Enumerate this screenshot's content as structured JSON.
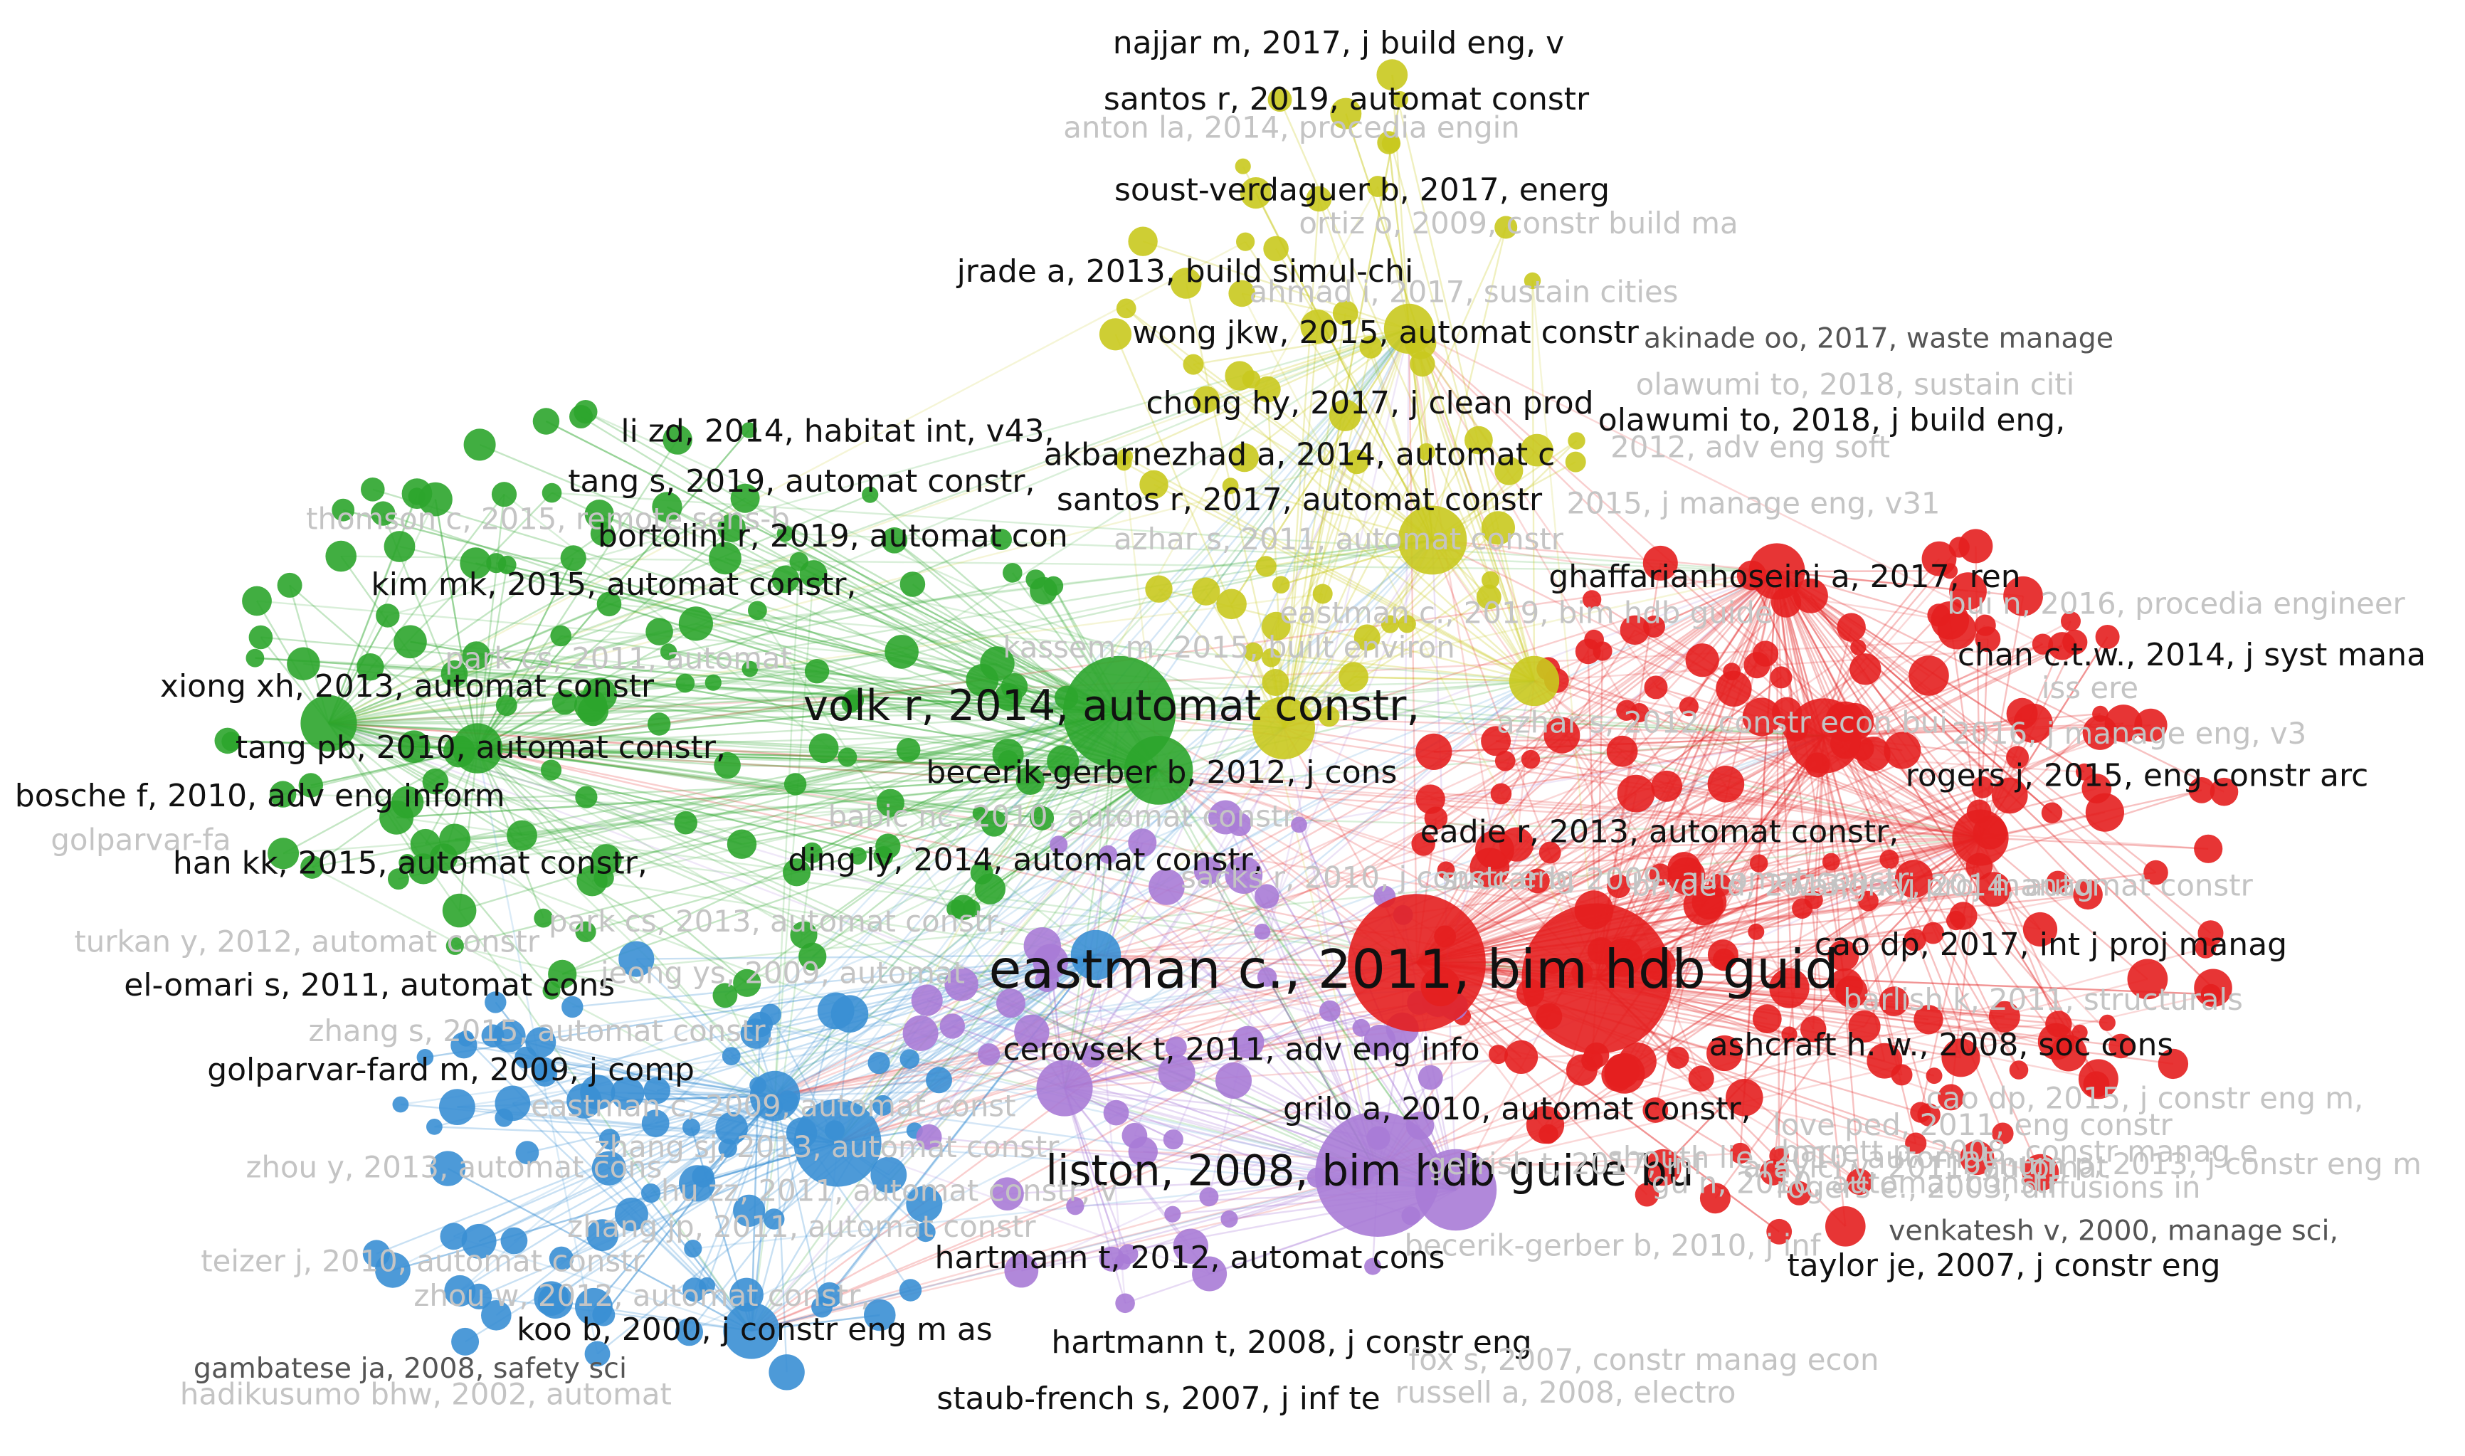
{
  "colors": {
    "red": "#e41f1f",
    "green": "#2ca52c",
    "blue": "#3a8fd4",
    "purple": "#a97bd6",
    "yellow": "#c9c91e",
    "label_dark": "#111111",
    "label_faint": "#c4c4c4"
  },
  "labels": [
    {
      "id": "najjar",
      "text": "najjar m, 2017, j build eng, v",
      "cluster": "yellow",
      "weight": "normal"
    },
    {
      "id": "santos2019",
      "text": "santos r, 2019, automat constr",
      "cluster": "yellow",
      "weight": "normal"
    },
    {
      "id": "anton",
      "text": "anton la, 2014, procedia engin",
      "cluster": "yellow",
      "weight": "faint"
    },
    {
      "id": "soust",
      "text": "soust-verdaguer b, 2017, energ",
      "cluster": "yellow",
      "weight": "normal"
    },
    {
      "id": "ortiz",
      "text": "ortiz o, 2009, constr build ma",
      "cluster": "yellow",
      "weight": "faint"
    },
    {
      "id": "jrade",
      "text": "jrade a, 2013, build simul-chi",
      "cluster": "yellow",
      "weight": "normal"
    },
    {
      "id": "ahmad",
      "text": "ahmad i, 2017, sustain cities",
      "cluster": "yellow",
      "weight": "faint"
    },
    {
      "id": "wong",
      "text": "wong jkw, 2015, automat constr",
      "cluster": "yellow",
      "weight": "normal"
    },
    {
      "id": "akinade",
      "text": "akinade oo, 2017, waste manage",
      "cluster": "yellow",
      "weight": "medium"
    },
    {
      "id": "olawumi2018s",
      "text": "olawumi to, 2018, sustain citi",
      "cluster": "yellow",
      "weight": "faint"
    },
    {
      "id": "chong",
      "text": "chong hy, 2017, j clean prod",
      "cluster": "yellow",
      "weight": "normal"
    },
    {
      "id": "olawumi2018b",
      "text": "olawumi to, 2018, j build eng,",
      "cluster": "yellow",
      "weight": "normal"
    },
    {
      "id": "lizd",
      "text": "li zd, 2014, habitat int, v43,",
      "cluster": "green",
      "weight": "normal"
    },
    {
      "id": "akbarnezhad",
      "text": "akbarnezhad a, 2014, automat c",
      "cluster": "yellow",
      "weight": "normal"
    },
    {
      "id": "advengsoft",
      "text": "2012, adv eng soft",
      "cluster": "red",
      "weight": "faint"
    },
    {
      "id": "tangs",
      "text": "tang s, 2019, automat constr,",
      "cluster": "green",
      "weight": "normal"
    },
    {
      "id": "thomson",
      "text": "thomson c, 2015, remote sens-b",
      "cluster": "green",
      "weight": "faint"
    },
    {
      "id": "santos2017",
      "text": "santos r, 2017, automat constr",
      "cluster": "yellow",
      "weight": "normal"
    },
    {
      "id": "jmanage",
      "text": "2015, j manage eng, v31",
      "cluster": "red",
      "weight": "faint"
    },
    {
      "id": "bortolini",
      "text": "bortolini r, 2019, automat con",
      "cluster": "green",
      "weight": "normal"
    },
    {
      "id": "azhar2011",
      "text": "azhar s, 2011, automat constr",
      "cluster": "yellow",
      "weight": "faint"
    },
    {
      "id": "kimmk",
      "text": "kim mk, 2015, automat constr,",
      "cluster": "green",
      "weight": "normal"
    },
    {
      "id": "ghaffar",
      "text": "ghaffarianhoseini a, 2017, ren",
      "cluster": "red",
      "weight": "normal"
    },
    {
      "id": "bui",
      "text": "bui n, 2016, procedia engineer",
      "cluster": "red",
      "weight": "faint"
    },
    {
      "id": "eastbim",
      "text": "eastman c., 2019, bim hdb guide",
      "cluster": "red",
      "weight": "faint"
    },
    {
      "id": "park2011",
      "text": "park cs, 2011, automat",
      "cluster": "green",
      "weight": "faint"
    },
    {
      "id": "kassem",
      "text": "kassem m, 2015, built environ",
      "cluster": "yellow",
      "weight": "faint"
    },
    {
      "id": "chanctw",
      "text": "chan c.t.w., 2014, j syst mana",
      "cluster": "red",
      "weight": "normal"
    },
    {
      "id": "xiong",
      "text": "xiong xh, 2013, automat constr",
      "cluster": "green",
      "weight": "normal"
    },
    {
      "id": "volk",
      "text": "volk r, 2014, automat constr,",
      "cluster": "green",
      "weight": "big"
    },
    {
      "id": "azhar2012",
      "text": "azhar s, 2012, constr econ bui",
      "cluster": "red",
      "weight": "faint"
    },
    {
      "id": "issere",
      "text": "iss ere",
      "cluster": "red",
      "weight": "faint"
    },
    {
      "id": "jmanage2016",
      "text": "2016, j manage eng, v3",
      "cluster": "red",
      "weight": "faint"
    },
    {
      "id": "tangpb",
      "text": "tang pb, 2010, automat constr,",
      "cluster": "green",
      "weight": "normal"
    },
    {
      "id": "becerik2012",
      "text": "becerik-gerber b, 2012, j cons",
      "cluster": "green",
      "weight": "normal"
    },
    {
      "id": "rogers",
      "text": "rogers j, 2015, eng constr arc",
      "cluster": "red",
      "weight": "normal"
    },
    {
      "id": "bosche",
      "text": "bosche f, 2010, adv eng inform",
      "cluster": "green",
      "weight": "normal"
    },
    {
      "id": "babic",
      "text": "babic nc, 2010, automat constr",
      "cluster": "purple",
      "weight": "faint"
    },
    {
      "id": "eadie",
      "text": "eadie r, 2013, automat constr,",
      "cluster": "red",
      "weight": "normal"
    },
    {
      "id": "golparvar_l",
      "text": "golparvar-fa",
      "cluster": "green",
      "weight": "faint"
    },
    {
      "id": "dingly",
      "text": "ding ly, 2014, automat constr,",
      "cluster": "green",
      "weight": "normal"
    },
    {
      "id": "hankk",
      "text": "han kk, 2015, automat constr,",
      "cluster": "green",
      "weight": "normal"
    },
    {
      "id": "sacks",
      "text": "sacks r, 2010, j constr eng",
      "cluster": "purple",
      "weight": "faint"
    },
    {
      "id": "succar",
      "text": "succar b, 2009, automat constr",
      "cluster": "red",
      "weight": "faint"
    },
    {
      "id": "bryde",
      "text": "bryde d, 2013, int j proj manag",
      "cluster": "red",
      "weight": "faint"
    },
    {
      "id": "wang2014",
      "text": "wang xy, 2014, automat constr",
      "cluster": "red",
      "weight": "faint"
    },
    {
      "id": "parkcs",
      "text": "park cs, 2013, automat constr,",
      "cluster": "blue",
      "weight": "faint"
    },
    {
      "id": "turkan",
      "text": "turkan y, 2012, automat constr",
      "cluster": "green",
      "weight": "faint"
    },
    {
      "id": "cao",
      "text": "cao dp, 2017, int j proj manag",
      "cluster": "red",
      "weight": "normal"
    },
    {
      "id": "elomari",
      "text": "el-omari s, 2011, automat cons",
      "cluster": "green",
      "weight": "normal"
    },
    {
      "id": "jeong",
      "text": "jeong ys, 2009, automat",
      "cluster": "blue",
      "weight": "faint"
    },
    {
      "id": "eastman2011",
      "text": "eastman c., 2011, bim hdb guid",
      "cluster": "red",
      "weight": "huge"
    },
    {
      "id": "barlish",
      "text": "barlish k, 2011, structurals",
      "cluster": "red",
      "weight": "faint"
    },
    {
      "id": "zhangs2015",
      "text": "zhang s, 2015, automat constr,",
      "cluster": "blue",
      "weight": "faint"
    },
    {
      "id": "cerovsek",
      "text": "cerovsek t, 2011, adv eng info",
      "cluster": "purple",
      "weight": "normal"
    },
    {
      "id": "ashcraft",
      "text": "ashcraft h. w., 2008, soc cons",
      "cluster": "red",
      "weight": "normal"
    },
    {
      "id": "golparvar2009",
      "text": "golparvar-fard m, 2009, j comp",
      "cluster": "green",
      "weight": "normal"
    },
    {
      "id": "caodp2015",
      "text": "cao dp, 2015, j constr eng m,",
      "cluster": "red",
      "weight": "faint"
    },
    {
      "id": "eastman2009",
      "text": "eastman c, 2009, automat const",
      "cluster": "blue",
      "weight": "faint"
    },
    {
      "id": "grilo",
      "text": "grilo a, 2010, automat constr,",
      "cluster": "purple",
      "weight": "normal"
    },
    {
      "id": "love2011",
      "text": "love ped, 2011, eng constr",
      "cluster": "red",
      "weight": "faint"
    },
    {
      "id": "zhangsj",
      "text": "zhang sj, 2013, automat constr",
      "cluster": "blue",
      "weight": "faint"
    },
    {
      "id": "zhouy",
      "text": "zhou y, 2013, automat cons",
      "cluster": "blue",
      "weight": "faint"
    },
    {
      "id": "liston",
      "text": "liston, 2008, bim hdb guide bu",
      "cluster": "purple",
      "weight": "big"
    },
    {
      "id": "gerrish",
      "text": "gerrish t, 2017, inf",
      "cluster": "purple",
      "weight": "faint"
    },
    {
      "id": "bynum",
      "text": "bynum p, 2013, j constr eng m",
      "cluster": "red",
      "weight": "faint"
    },
    {
      "id": "arayici",
      "text": "arayici y, 2011, automat",
      "cluster": "red",
      "weight": "faint"
    },
    {
      "id": "barrett",
      "text": "barrett p, 2008, constr manag e",
      "cluster": "red",
      "weight": "faint"
    },
    {
      "id": "shouth",
      "text": "shouth lie, 2010, automat",
      "cluster": "red",
      "weight": "faint"
    },
    {
      "id": "gu2010",
      "text": "gu n, 2010, automat constr",
      "cluster": "red",
      "weight": "faint"
    },
    {
      "id": "lanar",
      "text": "rogers e., 2003, diffusions in",
      "cluster": "red",
      "weight": "faint"
    },
    {
      "id": "huzz",
      "text": "hu zz, 2011, automat constr, v",
      "cluster": "blue",
      "weight": "faint"
    },
    {
      "id": "zhangjp",
      "text": "zhang jp, 2011, automat constr",
      "cluster": "blue",
      "weight": "faint"
    },
    {
      "id": "venkatesh",
      "text": "venkatesh v, 2000, manage sci,",
      "cluster": "red",
      "weight": "medium"
    },
    {
      "id": "becerik2010",
      "text": "becerik-gerber b, 2010, j inf",
      "cluster": "purple",
      "weight": "faint"
    },
    {
      "id": "teizer",
      "text": "teizer j, 2010, automat constr",
      "cluster": "blue",
      "weight": "faint"
    },
    {
      "id": "hartmann2012",
      "text": "hartmann t, 2012, automat cons",
      "cluster": "purple",
      "weight": "normal"
    },
    {
      "id": "taylor",
      "text": "taylor je, 2007, j constr eng",
      "cluster": "red",
      "weight": "normal"
    },
    {
      "id": "zhouw",
      "text": "zhou w, 2012, automat constr,",
      "cluster": "blue",
      "weight": "faint"
    },
    {
      "id": "koo",
      "text": "koo b, 2000, j constr eng m as",
      "cluster": "blue",
      "weight": "normal"
    },
    {
      "id": "hartmann2008",
      "text": "hartmann t, 2008, j constr eng",
      "cluster": "purple",
      "weight": "normal"
    },
    {
      "id": "fox",
      "text": "fox s, 2007, constr manag econ",
      "cluster": "purple",
      "weight": "faint"
    },
    {
      "id": "gambatese",
      "text": "gambatese ja, 2008, safety sci",
      "cluster": "blue",
      "weight": "medium"
    },
    {
      "id": "hadikusumo",
      "text": "hadikusumo bhw, 2002, automat",
      "cluster": "blue",
      "weight": "faint"
    },
    {
      "id": "russell",
      "text": "russell a, 2008, electro",
      "cluster": "purple",
      "weight": "faint"
    },
    {
      "id": "staub",
      "text": "staub-french s, 2007, j inf te",
      "cluster": "purple",
      "weight": "normal"
    }
  ]
}
